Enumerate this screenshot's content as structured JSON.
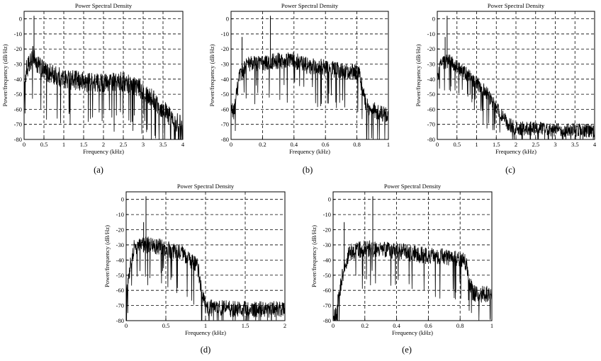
{
  "figure": {
    "panels": [
      {
        "caption": "(a)"
      },
      {
        "caption": "(b)"
      },
      {
        "caption": "(c)"
      },
      {
        "caption": "(d)"
      },
      {
        "caption": "(e)"
      }
    ]
  },
  "chart_data": [
    {
      "type": "line",
      "title": "Power Spectral Density",
      "xlabel": "Frequency (kHz)",
      "ylabel": "Power/frequency (dB/Hz)",
      "xlim": [
        0,
        4
      ],
      "ylim": [
        -80,
        5
      ],
      "xticks": [
        0,
        0.5,
        1,
        1.5,
        2,
        2.5,
        3,
        3.5,
        4
      ],
      "xtick_labels": [
        "0",
        "0.5",
        "1",
        "1.5",
        "2",
        "2.5",
        "3",
        "3.5",
        "4"
      ],
      "yticks": [
        -80,
        -70,
        -60,
        -50,
        -40,
        -30,
        -20,
        -10,
        0
      ],
      "ytick_labels": [
        "-80",
        "-70",
        "-60",
        "-50",
        "-40",
        "-30",
        "-20",
        "-10",
        "0"
      ],
      "grid": true,
      "line_color": "#000000",
      "series": [
        {
          "x": [
            0,
            0.05,
            0.1,
            0.2,
            0.25,
            0.3,
            0.5,
            0.8,
            1.0,
            1.5,
            2.0,
            2.5,
            2.8,
            3.0,
            3.2,
            3.4,
            3.6,
            3.8,
            4.0
          ],
          "y": [
            -55,
            -35,
            -32,
            -28,
            -22,
            -30,
            -35,
            -38,
            -40,
            -42,
            -43,
            -42,
            -45,
            -48,
            -52,
            -58,
            -63,
            -68,
            -72
          ],
          "peaks": [
            [
              0.25,
              2
            ],
            [
              0.22,
              -18
            ]
          ],
          "noise": 7
        }
      ]
    },
    {
      "type": "line",
      "title": "Power Spectral Density",
      "xlabel": "Frequency (kHz)",
      "ylabel": "Power/frequency (dB/Hz)",
      "xlim": [
        0,
        1
      ],
      "ylim": [
        -80,
        5
      ],
      "xticks": [
        0,
        0.2,
        0.4,
        0.6,
        0.8,
        1
      ],
      "xtick_labels": [
        "0",
        "0.2",
        "0.4",
        "0.6",
        "0.8",
        "1"
      ],
      "yticks": [
        -80,
        -70,
        -60,
        -50,
        -40,
        -30,
        -20,
        -10,
        0
      ],
      "ytick_labels": [
        "-80",
        "-70",
        "-60",
        "-50",
        "-40",
        "-30",
        "-20",
        "-10",
        "0"
      ],
      "grid": true,
      "line_color": "#000000",
      "series": [
        {
          "x": [
            0,
            0.02,
            0.05,
            0.1,
            0.2,
            0.3,
            0.4,
            0.5,
            0.6,
            0.7,
            0.8,
            0.82,
            0.84,
            0.86,
            0.9,
            0.95,
            1.0
          ],
          "y": [
            -60,
            -62,
            -40,
            -30,
            -30,
            -28,
            -28,
            -32,
            -33,
            -35,
            -36,
            -38,
            -50,
            -58,
            -60,
            -63,
            -65
          ],
          "peaks": [
            [
              0.25,
              2
            ],
            [
              0.07,
              -12
            ]
          ],
          "noise": 6
        }
      ]
    },
    {
      "type": "line",
      "title": "Power Spectral Density",
      "xlabel": "Frequency (kHz)",
      "ylabel": "Power/frequency (dB/Hz)",
      "xlim": [
        0,
        4
      ],
      "ylim": [
        -80,
        5
      ],
      "xticks": [
        0,
        0.5,
        1,
        1.5,
        2,
        2.5,
        3,
        3.5,
        4
      ],
      "xtick_labels": [
        "0",
        "0.5",
        "1",
        "1.5",
        "2",
        "2.5",
        "3",
        "3.5",
        "4"
      ],
      "yticks": [
        -80,
        -70,
        -60,
        -50,
        -40,
        -30,
        -20,
        -10,
        0
      ],
      "ytick_labels": [
        "-80",
        "-70",
        "-60",
        "-50",
        "-40",
        "-30",
        "-20",
        "-10",
        "0"
      ],
      "grid": true,
      "line_color": "#000000",
      "series": [
        {
          "x": [
            0,
            0.1,
            0.3,
            0.5,
            0.8,
            1.0,
            1.2,
            1.4,
            1.6,
            1.8,
            2.0,
            2.5,
            3.0,
            3.5,
            4.0
          ],
          "y": [
            -40,
            -30,
            -28,
            -32,
            -38,
            -43,
            -48,
            -55,
            -63,
            -70,
            -73,
            -73,
            -74,
            -74,
            -75
          ],
          "peaks": [
            [
              0.25,
              2
            ],
            [
              0.2,
              -12
            ]
          ],
          "noise": 5
        }
      ]
    },
    {
      "type": "line",
      "title": "Power Spectral Density",
      "xlabel": "Frequency (kHz)",
      "ylabel": "Power/frequency (dB/Hz)",
      "xlim": [
        0,
        2
      ],
      "ylim": [
        -80,
        5
      ],
      "xticks": [
        0,
        0.5,
        1,
        1.5,
        2
      ],
      "xtick_labels": [
        "0",
        "0.5",
        "1",
        "1.5",
        "2"
      ],
      "yticks": [
        -80,
        -70,
        -60,
        -50,
        -40,
        -30,
        -20,
        -10,
        0
      ],
      "ytick_labels": [
        "-80",
        "-70",
        "-60",
        "-50",
        "-40",
        "-30",
        "-20",
        "-10",
        "0"
      ],
      "grid": true,
      "line_color": "#000000",
      "series": [
        {
          "x": [
            0,
            0.05,
            0.1,
            0.3,
            0.5,
            0.7,
            0.85,
            0.9,
            0.95,
            1.0,
            1.2,
            1.4,
            1.6,
            1.8,
            2.0
          ],
          "y": [
            -60,
            -45,
            -32,
            -30,
            -33,
            -36,
            -42,
            -45,
            -60,
            -72,
            -72,
            -73,
            -73,
            -73,
            -73
          ],
          "peaks": [
            [
              0.25,
              2
            ],
            [
              0.22,
              -15
            ]
          ],
          "noise": 6
        }
      ]
    },
    {
      "type": "line",
      "title": "Power Spectral Density",
      "xlabel": "Frequency (kHz)",
      "ylabel": "Power/frequency (dB/Hz)",
      "xlim": [
        0,
        1
      ],
      "ylim": [
        -80,
        5
      ],
      "xticks": [
        0,
        0.2,
        0.4,
        0.6,
        0.8,
        1
      ],
      "xtick_labels": [
        "0",
        "0.2",
        "0.4",
        "0.6",
        "0.8",
        "1"
      ],
      "yticks": [
        -80,
        -70,
        -60,
        -50,
        -40,
        -30,
        -20,
        -10,
        0
      ],
      "ytick_labels": [
        "-80",
        "-70",
        "-60",
        "-50",
        "-40",
        "-30",
        "-20",
        "-10",
        "0"
      ],
      "grid": true,
      "line_color": "#000000",
      "series": [
        {
          "x": [
            0,
            0.02,
            0.04,
            0.06,
            0.1,
            0.2,
            0.3,
            0.4,
            0.5,
            0.6,
            0.7,
            0.8,
            0.84,
            0.86,
            0.88,
            0.9,
            0.95,
            1.0
          ],
          "y": [
            -80,
            -75,
            -62,
            -50,
            -35,
            -33,
            -33,
            -34,
            -36,
            -38,
            -38,
            -40,
            -42,
            -55,
            -62,
            -63,
            -63,
            -63
          ],
          "peaks": [
            [
              0.25,
              2
            ],
            [
              0.07,
              -15
            ]
          ],
          "noise": 6
        }
      ]
    }
  ]
}
